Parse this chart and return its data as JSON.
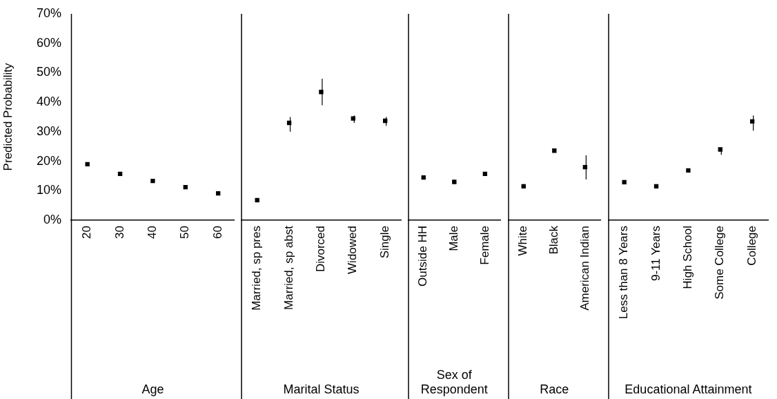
{
  "chart_data": [
    {
      "type": "scatter",
      "xlabel": "Age",
      "ylabel": "Predicted Probability",
      "categories": [
        "20",
        "30",
        "40",
        "50",
        "60"
      ],
      "values": [
        19,
        15.7,
        13.3,
        11.2,
        9.1
      ],
      "color": "#000000",
      "marker": "square",
      "ylim": [
        0,
        70
      ],
      "yticks": [
        {
          "value": 0,
          "label": "0%"
        },
        {
          "value": 10,
          "label": "10%"
        },
        {
          "value": 20,
          "label": "20%"
        },
        {
          "value": 30,
          "label": "30%"
        },
        {
          "value": 40,
          "label": "40%"
        },
        {
          "value": 50,
          "label": "50%"
        },
        {
          "value": 60,
          "label": "60%"
        },
        {
          "value": 70,
          "label": "70%"
        }
      ]
    },
    {
      "type": "scatter",
      "xlabel": "Marital Status",
      "categories": [
        "Married, sp pres",
        "Married, sp abst",
        "Divorced",
        "Widowed",
        "Single"
      ],
      "values": [
        6.8,
        33,
        43.5,
        34.5,
        33.7
      ],
      "errors": [
        null,
        [
          30,
          35
        ],
        [
          39,
          48
        ],
        [
          33,
          35.5
        ],
        [
          32,
          35
        ]
      ],
      "color": "#000000",
      "marker": "square",
      "ylim": [
        0,
        70
      ],
      "tick_labels": "x"
    },
    {
      "type": "scatter",
      "xlabel": "Sex of Respondent",
      "categories": [
        "Outside HH",
        "Male",
        "Female"
      ],
      "values": [
        14.5,
        13,
        15.7
      ],
      "color": "#000000",
      "marker": "square",
      "ylim": [
        0,
        70
      ],
      "tick_labels": "x"
    },
    {
      "type": "scatter",
      "xlabel": "Race",
      "categories": [
        "White",
        "Black",
        "American Indian"
      ],
      "values": [
        11.5,
        23.6,
        18
      ],
      "errors": [
        null,
        null,
        [
          13.8,
          22
        ]
      ],
      "color": "#000000",
      "marker": "square",
      "ylim": [
        0,
        70
      ],
      "tick_labels": "x"
    },
    {
      "type": "scatter",
      "xlabel": "Educational Attainment",
      "categories": [
        "Less than 8 Years",
        "9-11 Years",
        "High School",
        "Some College",
        "College"
      ],
      "values": [
        12.9,
        11.5,
        16.9,
        24,
        33.5
      ],
      "errors": [
        null,
        null,
        null,
        [
          22.2,
          24.5
        ],
        [
          30.4,
          35.5
        ]
      ],
      "color": "#000000",
      "marker": "square",
      "ylim": [
        0,
        70
      ],
      "tick_labels": "x"
    }
  ]
}
